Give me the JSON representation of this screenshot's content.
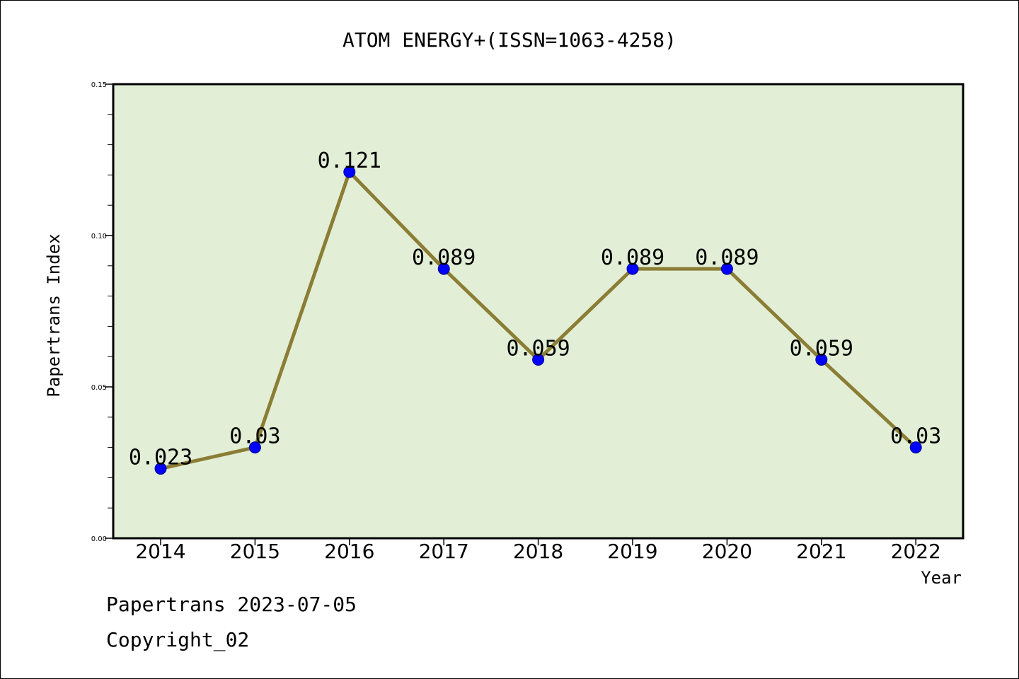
{
  "chart_data": {
    "type": "line",
    "title": "ATOM ENERGY+(ISSN=1063-4258)",
    "xlabel": "Year",
    "ylabel": "Papertrans Index",
    "categories": [
      "2014",
      "2015",
      "2016",
      "2017",
      "2018",
      "2019",
      "2020",
      "2021",
      "2022"
    ],
    "values": [
      0.023,
      0.03,
      0.121,
      0.089,
      0.059,
      0.089,
      0.089,
      0.059,
      0.03
    ],
    "data_labels": [
      "0.023",
      "0.03",
      "0.121",
      "0.089",
      "0.059",
      "0.089",
      "0.089",
      "0.059",
      "0.03"
    ],
    "ylim": [
      0,
      0.15
    ],
    "yticks": [
      0.0,
      0.05,
      0.1,
      0.15
    ],
    "ytick_labels": [
      "0.00",
      "0.05",
      "0.10",
      "0.15"
    ],
    "grid": false,
    "colors": {
      "plot_background": "#e2efd6",
      "line": "#8b7d35",
      "marker": "#0000ff"
    }
  },
  "footer": {
    "line1": "Papertrans 2023-07-05",
    "line2": "Copyright_02"
  }
}
